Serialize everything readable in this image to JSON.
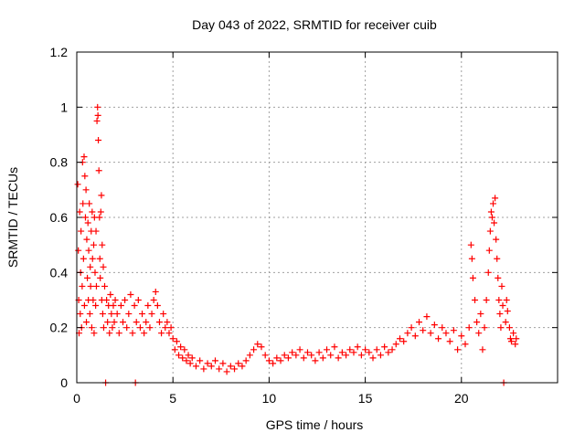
{
  "chart_data": {
    "type": "scatter",
    "title": "Day 043 of 2022, SRMTID for receiver cuib",
    "xlabel": "GPS time / hours",
    "ylabel": "SRMTID / TECUs",
    "xlim": [
      0,
      25
    ],
    "ylim": [
      0,
      1.2
    ],
    "x_ticks": [
      0,
      5,
      10,
      15,
      20
    ],
    "x_tick_labels": [
      "0",
      "5",
      "10",
      "15",
      "20"
    ],
    "y_ticks": [
      0,
      0.2,
      0.4,
      0.6,
      0.8,
      1.0,
      1.2
    ],
    "y_tick_labels": [
      "0",
      "0.2",
      "0.4",
      "0.6",
      "0.8",
      "1",
      "1.2"
    ],
    "grid": true,
    "marker": "plus",
    "color": "#ff0000",
    "series": [
      {
        "name": "SRMTID",
        "points": [
          [
            0.05,
            0.72
          ],
          [
            0.08,
            0.48
          ],
          [
            0.1,
            0.3
          ],
          [
            0.12,
            0.18
          ],
          [
            0.15,
            0.62
          ],
          [
            0.18,
            0.25
          ],
          [
            0.2,
            0.4
          ],
          [
            0.22,
            0.55
          ],
          [
            0.25,
            0.2
          ],
          [
            0.28,
            0.35
          ],
          [
            0.3,
            0.8
          ],
          [
            0.32,
            0.65
          ],
          [
            0.35,
            0.45
          ],
          [
            0.38,
            0.82
          ],
          [
            0.4,
            0.28
          ],
          [
            0.42,
            0.75
          ],
          [
            0.45,
            0.6
          ],
          [
            0.48,
            0.7
          ],
          [
            0.5,
            0.22
          ],
          [
            0.52,
            0.52
          ],
          [
            0.55,
            0.38
          ],
          [
            0.58,
            0.58
          ],
          [
            0.6,
            0.3
          ],
          [
            0.62,
            0.48
          ],
          [
            0.65,
            0.65
          ],
          [
            0.68,
            0.25
          ],
          [
            0.7,
            0.42
          ],
          [
            0.72,
            0.35
          ],
          [
            0.75,
            0.55
          ],
          [
            0.78,
            0.2
          ],
          [
            0.8,
            0.62
          ],
          [
            0.82,
            0.45
          ],
          [
            0.85,
            0.3
          ],
          [
            0.88,
            0.5
          ],
          [
            0.9,
            0.18
          ],
          [
            0.92,
            0.6
          ],
          [
            0.95,
            0.4
          ],
          [
            0.98,
            0.28
          ],
          [
            1.0,
            0.55
          ],
          [
            1.02,
            0.35
          ],
          [
            1.05,
            0.95
          ],
          [
            1.08,
            1.0
          ],
          [
            1.1,
            0.97
          ],
          [
            1.12,
            0.88
          ],
          [
            1.15,
            0.77
          ],
          [
            1.18,
            0.6
          ],
          [
            1.2,
            0.45
          ],
          [
            1.22,
            0.38
          ],
          [
            1.25,
            0.62
          ],
          [
            1.28,
            0.68
          ],
          [
            1.3,
            0.3
          ],
          [
            1.32,
            0.5
          ],
          [
            1.35,
            0.25
          ],
          [
            1.38,
            0.42
          ],
          [
            1.4,
            0.2
          ],
          [
            1.45,
            0.35
          ],
          [
            1.5,
            0.0
          ],
          [
            1.55,
            0.3
          ],
          [
            1.6,
            0.22
          ],
          [
            1.65,
            0.28
          ],
          [
            1.7,
            0.18
          ],
          [
            1.75,
            0.32
          ],
          [
            1.8,
            0.25
          ],
          [
            1.85,
            0.2
          ],
          [
            1.9,
            0.28
          ],
          [
            1.95,
            0.22
          ],
          [
            2.0,
            0.3
          ],
          [
            2.1,
            0.25
          ],
          [
            2.2,
            0.18
          ],
          [
            2.3,
            0.28
          ],
          [
            2.4,
            0.22
          ],
          [
            2.5,
            0.3
          ],
          [
            2.6,
            0.2
          ],
          [
            2.7,
            0.25
          ],
          [
            2.8,
            0.32
          ],
          [
            2.9,
            0.18
          ],
          [
            3.0,
            0.28
          ],
          [
            3.05,
            0.0
          ],
          [
            3.1,
            0.22
          ],
          [
            3.2,
            0.3
          ],
          [
            3.3,
            0.2
          ],
          [
            3.4,
            0.25
          ],
          [
            3.5,
            0.18
          ],
          [
            3.6,
            0.22
          ],
          [
            3.7,
            0.28
          ],
          [
            3.8,
            0.2
          ],
          [
            3.9,
            0.25
          ],
          [
            4.0,
            0.3
          ],
          [
            4.1,
            0.33
          ],
          [
            4.2,
            0.28
          ],
          [
            4.3,
            0.22
          ],
          [
            4.4,
            0.18
          ],
          [
            4.5,
            0.25
          ],
          [
            4.6,
            0.2
          ],
          [
            4.7,
            0.22
          ],
          [
            4.8,
            0.18
          ],
          [
            4.9,
            0.2
          ],
          [
            5.0,
            0.16
          ],
          [
            5.1,
            0.12
          ],
          [
            5.2,
            0.15
          ],
          [
            5.3,
            0.1
          ],
          [
            5.4,
            0.13
          ],
          [
            5.5,
            0.09
          ],
          [
            5.6,
            0.12
          ],
          [
            5.7,
            0.08
          ],
          [
            5.8,
            0.1
          ],
          [
            5.9,
            0.07
          ],
          [
            6.0,
            0.09
          ],
          [
            6.2,
            0.06
          ],
          [
            6.4,
            0.08
          ],
          [
            6.6,
            0.05
          ],
          [
            6.8,
            0.07
          ],
          [
            7.0,
            0.06
          ],
          [
            7.2,
            0.08
          ],
          [
            7.4,
            0.05
          ],
          [
            7.6,
            0.07
          ],
          [
            7.8,
            0.04
          ],
          [
            8.0,
            0.06
          ],
          [
            8.2,
            0.05
          ],
          [
            8.4,
            0.07
          ],
          [
            8.6,
            0.06
          ],
          [
            8.8,
            0.08
          ],
          [
            9.0,
            0.1
          ],
          [
            9.2,
            0.12
          ],
          [
            9.4,
            0.14
          ],
          [
            9.6,
            0.13
          ],
          [
            9.8,
            0.1
          ],
          [
            10.0,
            0.08
          ],
          [
            10.2,
            0.07
          ],
          [
            10.4,
            0.09
          ],
          [
            10.6,
            0.08
          ],
          [
            10.8,
            0.1
          ],
          [
            11.0,
            0.09
          ],
          [
            11.2,
            0.11
          ],
          [
            11.4,
            0.1
          ],
          [
            11.6,
            0.12
          ],
          [
            11.8,
            0.09
          ],
          [
            12.0,
            0.11
          ],
          [
            12.2,
            0.1
          ],
          [
            12.4,
            0.08
          ],
          [
            12.6,
            0.11
          ],
          [
            12.8,
            0.09
          ],
          [
            13.0,
            0.12
          ],
          [
            13.2,
            0.1
          ],
          [
            13.4,
            0.13
          ],
          [
            13.6,
            0.09
          ],
          [
            13.8,
            0.11
          ],
          [
            14.0,
            0.1
          ],
          [
            14.2,
            0.12
          ],
          [
            14.4,
            0.11
          ],
          [
            14.6,
            0.13
          ],
          [
            14.8,
            0.1
          ],
          [
            15.0,
            0.12
          ],
          [
            15.2,
            0.11
          ],
          [
            15.4,
            0.09
          ],
          [
            15.6,
            0.12
          ],
          [
            15.8,
            0.1
          ],
          [
            16.0,
            0.13
          ],
          [
            16.2,
            0.11
          ],
          [
            16.4,
            0.12
          ],
          [
            16.6,
            0.14
          ],
          [
            16.8,
            0.16
          ],
          [
            17.0,
            0.15
          ],
          [
            17.2,
            0.18
          ],
          [
            17.4,
            0.2
          ],
          [
            17.6,
            0.17
          ],
          [
            17.8,
            0.22
          ],
          [
            18.0,
            0.19
          ],
          [
            18.2,
            0.24
          ],
          [
            18.4,
            0.18
          ],
          [
            18.6,
            0.21
          ],
          [
            18.8,
            0.16
          ],
          [
            19.0,
            0.2
          ],
          [
            19.2,
            0.18
          ],
          [
            19.4,
            0.15
          ],
          [
            19.6,
            0.19
          ],
          [
            19.8,
            0.12
          ],
          [
            20.0,
            0.17
          ],
          [
            20.2,
            0.14
          ],
          [
            20.4,
            0.2
          ],
          [
            20.5,
            0.5
          ],
          [
            20.55,
            0.45
          ],
          [
            20.6,
            0.38
          ],
          [
            20.7,
            0.3
          ],
          [
            20.8,
            0.22
          ],
          [
            20.9,
            0.18
          ],
          [
            21.0,
            0.25
          ],
          [
            21.1,
            0.12
          ],
          [
            21.2,
            0.2
          ],
          [
            21.3,
            0.3
          ],
          [
            21.4,
            0.4
          ],
          [
            21.45,
            0.48
          ],
          [
            21.5,
            0.55
          ],
          [
            21.55,
            0.62
          ],
          [
            21.6,
            0.6
          ],
          [
            21.65,
            0.65
          ],
          [
            21.7,
            0.58
          ],
          [
            21.75,
            0.67
          ],
          [
            21.8,
            0.52
          ],
          [
            21.85,
            0.45
          ],
          [
            21.9,
            0.38
          ],
          [
            21.95,
            0.3
          ],
          [
            22.0,
            0.25
          ],
          [
            22.05,
            0.2
          ],
          [
            22.1,
            0.35
          ],
          [
            22.15,
            0.28
          ],
          [
            22.2,
            0.0
          ],
          [
            22.3,
            0.22
          ],
          [
            22.35,
            0.3
          ],
          [
            22.4,
            0.26
          ],
          [
            22.5,
            0.2
          ],
          [
            22.55,
            0.16
          ],
          [
            22.6,
            0.15
          ],
          [
            22.7,
            0.18
          ],
          [
            22.8,
            0.14
          ],
          [
            22.85,
            0.16
          ]
        ]
      }
    ]
  }
}
